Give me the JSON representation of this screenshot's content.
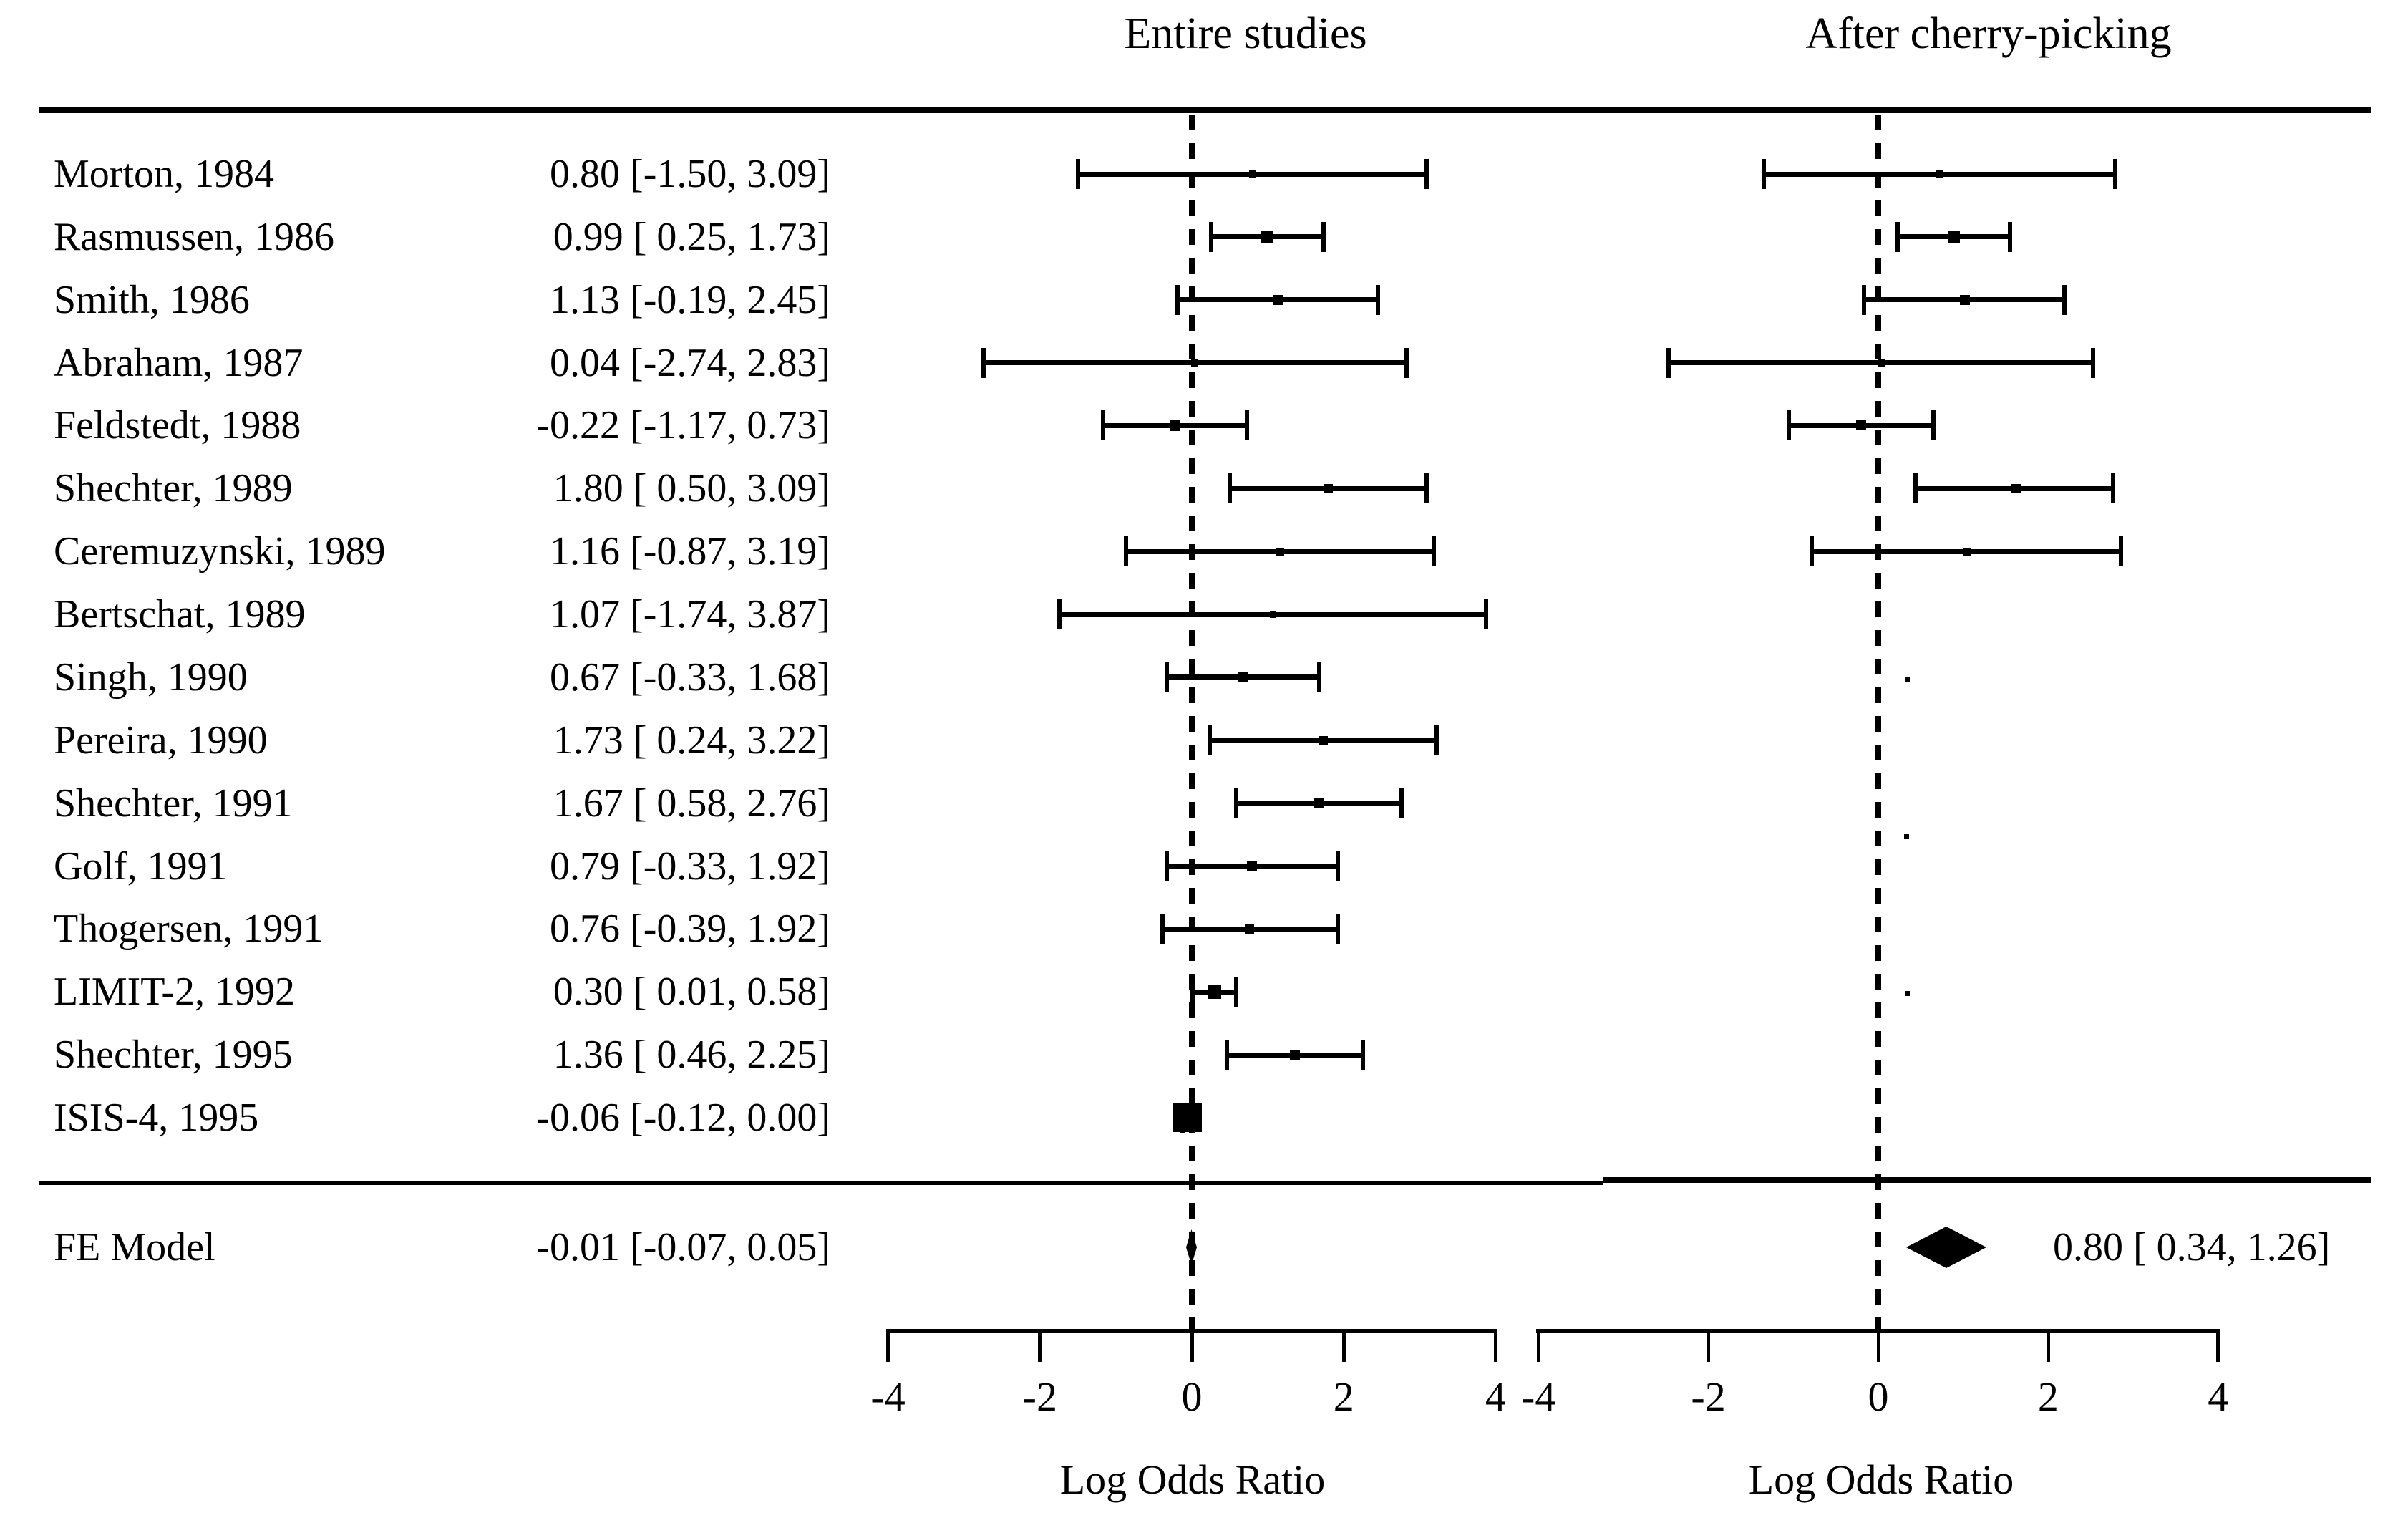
{
  "colors": {
    "foreground": "#000000",
    "background": "#ffffff"
  },
  "chart_data": {
    "type": "scatter",
    "subtype": "forest-plot",
    "title": "",
    "xlabel": "Log Odds Ratio",
    "xlim": [
      -4,
      4
    ],
    "x_ticks": [
      -4,
      -2,
      0,
      2,
      4
    ],
    "grid": false,
    "panel_titles": [
      "Entire studies",
      "After cherry-picking"
    ],
    "reference_line_x": 0,
    "studies": [
      {
        "label": "Morton, 1984",
        "text": "0.80 [-1.50, 3.09]",
        "entire": {
          "est": 0.8,
          "lo": -1.5,
          "hi": 3.09,
          "marker": 10
        },
        "cherry": {
          "type": "ci",
          "est": 0.72,
          "lo": -1.35,
          "hi": 2.79,
          "marker": 11
        }
      },
      {
        "label": "Rasmussen, 1986",
        "text": "0.99 [ 0.25, 1.73]",
        "entire": {
          "est": 0.99,
          "lo": 0.25,
          "hi": 1.73,
          "marker": 16
        },
        "cherry": {
          "type": "ci",
          "est": 0.89,
          "lo": 0.23,
          "hi": 1.55,
          "marker": 16
        }
      },
      {
        "label": "Smith, 1986",
        "text": "1.13 [-0.19, 2.45]",
        "entire": {
          "est": 1.13,
          "lo": -0.19,
          "hi": 2.45,
          "marker": 14
        },
        "cherry": {
          "type": "ci",
          "est": 1.02,
          "lo": -0.17,
          "hi": 2.19,
          "marker": 14
        }
      },
      {
        "label": "Abraham, 1987",
        "text": "0.04 [-2.74, 2.83]",
        "entire": {
          "est": 0.04,
          "lo": -2.74,
          "hi": 2.83,
          "marker": 10
        },
        "cherry": {
          "type": "ci",
          "est": 0.03,
          "lo": -2.47,
          "hi": 2.53,
          "marker": 10
        }
      },
      {
        "label": "Feldstedt, 1988",
        "text": "-0.22 [-1.17, 0.73]",
        "entire": {
          "est": -0.22,
          "lo": -1.17,
          "hi": 0.73,
          "marker": 15
        },
        "cherry": {
          "type": "ci",
          "est": -0.2,
          "lo": -1.05,
          "hi": 0.65,
          "marker": 14
        }
      },
      {
        "label": "Shechter, 1989",
        "text": "1.80 [ 0.50, 3.09]",
        "entire": {
          "est": 1.8,
          "lo": 0.5,
          "hi": 3.09,
          "marker": 13
        },
        "cherry": {
          "type": "ci",
          "est": 1.62,
          "lo": 0.44,
          "hi": 2.76,
          "marker": 13
        }
      },
      {
        "label": "Ceremuzynski, 1989",
        "text": "1.16 [-0.87, 3.19]",
        "entire": {
          "est": 1.16,
          "lo": -0.87,
          "hi": 3.19,
          "marker": 11
        },
        "cherry": {
          "type": "ci",
          "est": 1.05,
          "lo": -0.78,
          "hi": 2.86,
          "marker": 11
        }
      },
      {
        "label": "Bertschat, 1989",
        "text": "1.07 [-1.74, 3.87]",
        "entire": {
          "est": 1.07,
          "lo": -1.74,
          "hi": 3.87,
          "marker": 9
        },
        "cherry": {
          "type": "none"
        }
      },
      {
        "label": "Singh, 1990",
        "text": "0.67 [-0.33, 1.68]",
        "entire": {
          "est": 0.67,
          "lo": -0.33,
          "hi": 1.68,
          "marker": 15
        },
        "cherry": {
          "type": "dot",
          "est": 0.34,
          "marker": 7,
          "row_offset": 0.03
        }
      },
      {
        "label": "Pereira, 1990",
        "text": "1.73 [ 0.24, 3.22]",
        "entire": {
          "est": 1.73,
          "lo": 0.24,
          "hi": 3.22,
          "marker": 12
        },
        "cherry": {
          "type": "none"
        }
      },
      {
        "label": "Shechter, 1991",
        "text": "1.67 [ 0.58, 2.76]",
        "entire": {
          "est": 1.67,
          "lo": 0.58,
          "hi": 2.76,
          "marker": 13
        },
        "cherry": {
          "type": "dot",
          "est": 0.33,
          "marker": 7,
          "row_offset": 0.53
        }
      },
      {
        "label": "Golf, 1991",
        "text": "0.79 [-0.33, 1.92]",
        "entire": {
          "est": 0.79,
          "lo": -0.33,
          "hi": 1.92,
          "marker": 14
        },
        "cherry": {
          "type": "none"
        }
      },
      {
        "label": "Thogersen, 1991",
        "text": "0.76 [-0.39, 1.92]",
        "entire": {
          "est": 0.76,
          "lo": -0.39,
          "hi": 1.92,
          "marker": 13
        },
        "cherry": {
          "type": "none"
        }
      },
      {
        "label": "LIMIT-2, 1992",
        "text": "0.30 [ 0.01, 0.58]",
        "entire": {
          "est": 0.3,
          "lo": 0.01,
          "hi": 0.58,
          "marker": 19
        },
        "cherry": {
          "type": "dot",
          "est": 0.34,
          "marker": 7,
          "row_offset": 0.02
        }
      },
      {
        "label": "Shechter, 1995",
        "text": "1.36 [ 0.46, 2.25]",
        "entire": {
          "est": 1.36,
          "lo": 0.46,
          "hi": 2.25,
          "marker": 14
        },
        "cherry": {
          "type": "none"
        }
      },
      {
        "label": "ISIS-4, 1995",
        "text": "-0.06 [-0.12, 0.00]",
        "entire": {
          "est": -0.06,
          "lo": -0.12,
          "hi": 0.0,
          "marker": 40
        },
        "cherry": {
          "type": "none"
        }
      }
    ],
    "fe": {
      "label": "FE Model",
      "entire": {
        "est": -0.01,
        "lo": -0.07,
        "hi": 0.05,
        "text": "-0.01 [-0.07, 0.05]"
      },
      "cherry": {
        "est": 0.8,
        "lo": 0.34,
        "hi": 1.26,
        "text": "0.80 [ 0.34, 1.26]"
      }
    }
  }
}
